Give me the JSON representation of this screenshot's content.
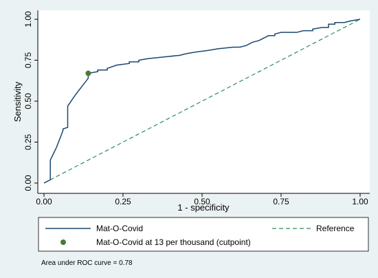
{
  "chart_data": {
    "type": "line",
    "xlabel": "1 - specificity",
    "ylabel": "Sensitivity",
    "xlim": [
      0,
      1
    ],
    "ylim": [
      0,
      1
    ],
    "x_ticks": [
      "0.00",
      "0.25",
      "0.50",
      "0.75",
      "1.00"
    ],
    "y_ticks": [
      "0.00",
      "0.25",
      "0.50",
      "0.75",
      "1.00"
    ],
    "grid": false,
    "legend_position": "bottom",
    "series": [
      {
        "name": "Mat-O-Covid",
        "style": "solid",
        "color": "#1a476f",
        "x": [
          0.0,
          0.02,
          0.02,
          0.04,
          0.06,
          0.06,
          0.075,
          0.075,
          0.1,
          0.14,
          0.14,
          0.17,
          0.17,
          0.2,
          0.2,
          0.23,
          0.27,
          0.27,
          0.3,
          0.3,
          0.33,
          0.38,
          0.43,
          0.45,
          0.48,
          0.52,
          0.55,
          0.6,
          0.62,
          0.64,
          0.66,
          0.68,
          0.7,
          0.71,
          0.73,
          0.73,
          0.75,
          0.8,
          0.82,
          0.85,
          0.85,
          0.88,
          0.9,
          0.9,
          0.92,
          0.92,
          0.95,
          0.97,
          1.0
        ],
        "y": [
          0.0,
          0.02,
          0.14,
          0.22,
          0.32,
          0.33,
          0.34,
          0.47,
          0.54,
          0.64,
          0.67,
          0.68,
          0.69,
          0.69,
          0.7,
          0.72,
          0.73,
          0.74,
          0.74,
          0.75,
          0.76,
          0.77,
          0.78,
          0.79,
          0.8,
          0.81,
          0.82,
          0.83,
          0.83,
          0.84,
          0.86,
          0.87,
          0.89,
          0.9,
          0.9,
          0.91,
          0.92,
          0.92,
          0.93,
          0.93,
          0.94,
          0.95,
          0.95,
          0.97,
          0.97,
          0.98,
          0.98,
          0.99,
          1.0
        ]
      },
      {
        "name": "Reference",
        "style": "dashed",
        "color": "#2e8b57",
        "x": [
          0,
          1
        ],
        "y": [
          0,
          1
        ]
      }
    ],
    "cutpoint": {
      "name": "Mat-O-Covid at 13 per thousand (cutpoint)",
      "x": 0.14,
      "y": 0.67,
      "color": "#4a7a3a"
    },
    "annotation": "Area under ROC curve = 0.78"
  }
}
